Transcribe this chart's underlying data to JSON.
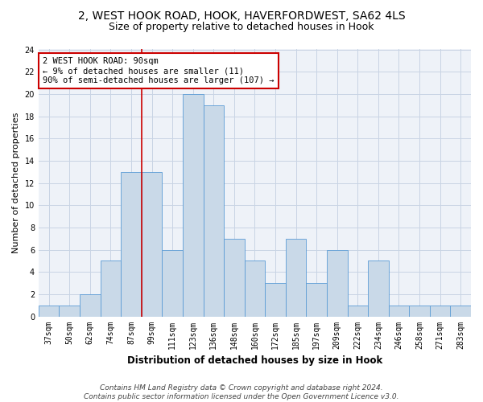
{
  "title1": "2, WEST HOOK ROAD, HOOK, HAVERFORDWEST, SA62 4LS",
  "title2": "Size of property relative to detached houses in Hook",
  "xlabel": "Distribution of detached houses by size in Hook",
  "ylabel": "Number of detached properties",
  "categories": [
    "37sqm",
    "50sqm",
    "62sqm",
    "74sqm",
    "87sqm",
    "99sqm",
    "111sqm",
    "123sqm",
    "136sqm",
    "148sqm",
    "160sqm",
    "172sqm",
    "185sqm",
    "197sqm",
    "209sqm",
    "222sqm",
    "234sqm",
    "246sqm",
    "258sqm",
    "271sqm",
    "283sqm"
  ],
  "values": [
    1,
    1,
    2,
    5,
    13,
    13,
    6,
    20,
    19,
    7,
    5,
    3,
    7,
    3,
    6,
    1,
    5,
    1,
    1,
    1,
    1
  ],
  "bar_color": "#c9d9e8",
  "bar_edge_color": "#5b9bd5",
  "grid_color": "#c8d4e4",
  "bg_color": "#eef2f8",
  "vline_color": "#cc0000",
  "annotation_text": "2 WEST HOOK ROAD: 90sqm\n← 9% of detached houses are smaller (11)\n90% of semi-detached houses are larger (107) →",
  "annotation_box_color": "white",
  "annotation_box_edge": "#cc0000",
  "ylim": [
    0,
    24
  ],
  "yticks": [
    0,
    2,
    4,
    6,
    8,
    10,
    12,
    14,
    16,
    18,
    20,
    22,
    24
  ],
  "footer": "Contains HM Land Registry data © Crown copyright and database right 2024.\nContains public sector information licensed under the Open Government Licence v3.0.",
  "title1_fontsize": 10,
  "title2_fontsize": 9,
  "xlabel_fontsize": 8.5,
  "ylabel_fontsize": 8,
  "tick_fontsize": 7,
  "annotation_fontsize": 7.5,
  "footer_fontsize": 6.5
}
